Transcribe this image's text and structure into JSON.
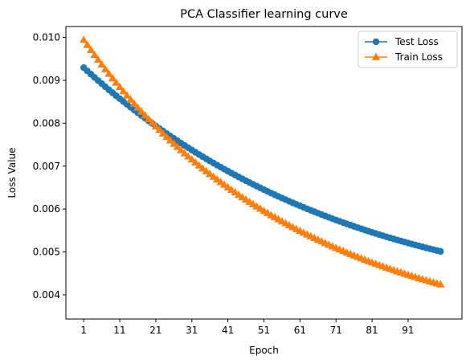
{
  "chart_data": {
    "type": "line",
    "title": "PCA Classifier learning curve",
    "xlabel": "Epoch",
    "ylabel": "Loss Value",
    "xlim": [
      -3.95,
      105.95
    ],
    "ylim": [
      0.003437,
      0.010254
    ],
    "xticks": [
      1,
      11,
      21,
      31,
      41,
      51,
      61,
      71,
      81,
      91
    ],
    "yticks": [
      0.004,
      0.005,
      0.006,
      0.007,
      0.008,
      0.009,
      0.01
    ],
    "ytick_labels": [
      "0.004",
      "0.005",
      "0.006",
      "0.007",
      "0.008",
      "0.009",
      "0.010"
    ],
    "x": [
      1,
      2,
      3,
      4,
      5,
      6,
      7,
      8,
      9,
      10,
      11,
      12,
      13,
      14,
      15,
      16,
      17,
      18,
      19,
      20,
      21,
      22,
      23,
      24,
      25,
      26,
      27,
      28,
      29,
      30,
      31,
      32,
      33,
      34,
      35,
      36,
      37,
      38,
      39,
      40,
      41,
      42,
      43,
      44,
      45,
      46,
      47,
      48,
      49,
      50,
      51,
      52,
      53,
      54,
      55,
      56,
      57,
      58,
      59,
      60,
      61,
      62,
      63,
      64,
      65,
      66,
      67,
      68,
      69,
      70,
      71,
      72,
      73,
      74,
      75,
      76,
      77,
      78,
      79,
      80,
      81,
      82,
      83,
      84,
      85,
      86,
      87,
      88,
      89,
      90,
      91,
      92,
      93,
      94,
      95,
      96,
      97,
      98,
      99,
      100
    ],
    "grid": false,
    "legend_position": "upper right",
    "series": [
      {
        "name": "Test Loss",
        "color": "#1f77b4",
        "marker": "circle",
        "values": [
          0.009294,
          0.009218,
          0.009142,
          0.009068,
          0.008994,
          0.008922,
          0.00885,
          0.008779,
          0.008709,
          0.00864,
          0.008572,
          0.008504,
          0.008438,
          0.008372,
          0.008307,
          0.008243,
          0.00818,
          0.008118,
          0.008056,
          0.007995,
          0.007935,
          0.007876,
          0.007817,
          0.007759,
          0.007702,
          0.007646,
          0.00759,
          0.007535,
          0.007481,
          0.007428,
          0.007375,
          0.007323,
          0.007271,
          0.00722,
          0.00717,
          0.007121,
          0.007072,
          0.007023,
          0.006976,
          0.006929,
          0.006883,
          0.006837,
          0.006792,
          0.006747,
          0.006703,
          0.00666,
          0.006617,
          0.006575,
          0.006533,
          0.006492,
          0.006451,
          0.006411,
          0.006372,
          0.006333,
          0.006294,
          0.006256,
          0.006219,
          0.006182,
          0.006145,
          0.006109,
          0.006074,
          0.006039,
          0.006004,
          0.00597,
          0.005937,
          0.005903,
          0.005871,
          0.005838,
          0.005807,
          0.005775,
          0.005744,
          0.005714,
          0.005683,
          0.005654,
          0.005624,
          0.005596,
          0.005567,
          0.005539,
          0.005511,
          0.005484,
          0.005457,
          0.00543,
          0.005404,
          0.005378,
          0.005353,
          0.005328,
          0.005303,
          0.005279,
          0.005255,
          0.005231,
          0.005208,
          0.005185,
          0.005162,
          0.00514,
          0.005118,
          0.005096,
          0.005075,
          0.005054,
          0.005033,
          0.005013
        ]
      },
      {
        "name": "Train Loss",
        "color": "#ff7f0e",
        "marker": "triangle",
        "values": [
          0.009945,
          0.009826,
          0.009709,
          0.009594,
          0.009481,
          0.009371,
          0.009262,
          0.009155,
          0.00905,
          0.008947,
          0.008846,
          0.008747,
          0.008649,
          0.008553,
          0.008459,
          0.008366,
          0.008275,
          0.008186,
          0.008098,
          0.008012,
          0.007927,
          0.007844,
          0.007762,
          0.007682,
          0.007603,
          0.007525,
          0.007449,
          0.007374,
          0.0073,
          0.007228,
          0.007157,
          0.007087,
          0.007018,
          0.00695,
          0.006884,
          0.006818,
          0.006754,
          0.006691,
          0.006629,
          0.006568,
          0.006508,
          0.006449,
          0.006391,
          0.006333,
          0.006277,
          0.006222,
          0.006167,
          0.006114,
          0.006061,
          0.00601,
          0.005959,
          0.005909,
          0.005859,
          0.005811,
          0.005763,
          0.005716,
          0.00567,
          0.005625,
          0.00558,
          0.005536,
          0.005493,
          0.00545,
          0.005408,
          0.005367,
          0.005326,
          0.005286,
          0.005247,
          0.005208,
          0.00517,
          0.005133,
          0.005096,
          0.005059,
          0.005024,
          0.004988,
          0.004954,
          0.00492,
          0.004886,
          0.004853,
          0.004821,
          0.004789,
          0.004757,
          0.004726,
          0.004696,
          0.004666,
          0.004636,
          0.004607,
          0.004579,
          0.00455,
          0.004523,
          0.004495,
          0.004469,
          0.004442,
          0.004416,
          0.004391,
          0.004366,
          0.004341,
          0.004317,
          0.004293,
          0.004269,
          0.004246
        ]
      }
    ]
  }
}
